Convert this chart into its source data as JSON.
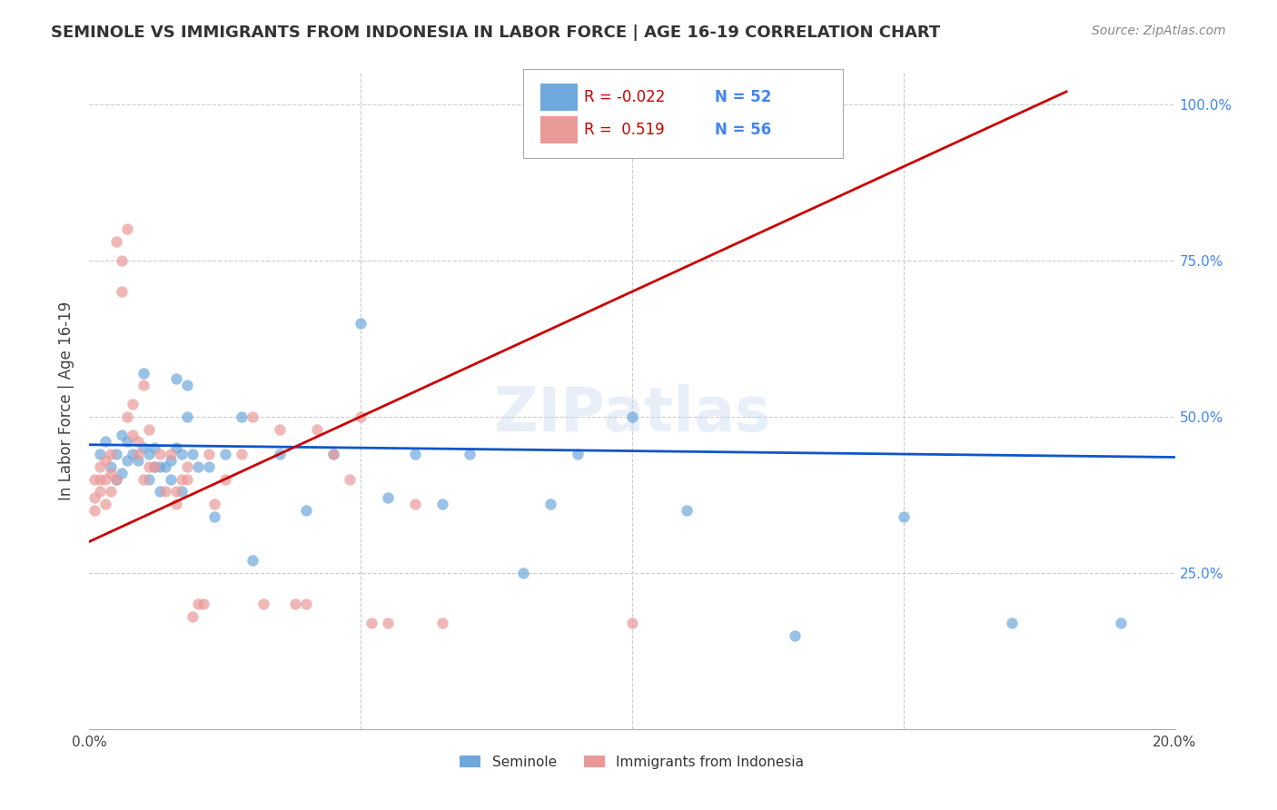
{
  "title": "SEMINOLE VS IMMIGRANTS FROM INDONESIA IN LABOR FORCE | AGE 16-19 CORRELATION CHART",
  "source": "Source: ZipAtlas.com",
  "xlabel": "",
  "ylabel": "In Labor Force | Age 16-19",
  "xlim": [
    0.0,
    0.2
  ],
  "ylim": [
    0.0,
    1.05
  ],
  "xticks": [
    0.0,
    0.05,
    0.1,
    0.15,
    0.2
  ],
  "xticklabels": [
    "0.0%",
    "",
    "",
    "",
    "20.0%"
  ],
  "yticks_right": [
    0.0,
    0.25,
    0.5,
    0.75,
    1.0
  ],
  "yticklabels_right": [
    "",
    "25.0%",
    "50.0%",
    "75.0%",
    "100.0%"
  ],
  "legend_r_blue": "-0.022",
  "legend_n_blue": "52",
  "legend_r_pink": "0.519",
  "legend_n_pink": "56",
  "blue_color": "#6fa8dc",
  "pink_color": "#ea9999",
  "blue_line_color": "#1155cc",
  "pink_line_color": "#cc0000",
  "watermark": "ZIPatlas",
  "blue_scatter_x": [
    0.002,
    0.003,
    0.004,
    0.005,
    0.005,
    0.006,
    0.006,
    0.007,
    0.007,
    0.008,
    0.009,
    0.01,
    0.01,
    0.011,
    0.011,
    0.012,
    0.012,
    0.013,
    0.013,
    0.014,
    0.015,
    0.015,
    0.016,
    0.016,
    0.017,
    0.017,
    0.018,
    0.018,
    0.019,
    0.02,
    0.022,
    0.023,
    0.025,
    0.028,
    0.03,
    0.035,
    0.04,
    0.045,
    0.05,
    0.055,
    0.06,
    0.065,
    0.07,
    0.08,
    0.085,
    0.09,
    0.1,
    0.11,
    0.13,
    0.15,
    0.17,
    0.19
  ],
  "blue_scatter_y": [
    0.44,
    0.46,
    0.42,
    0.44,
    0.4,
    0.47,
    0.41,
    0.43,
    0.46,
    0.44,
    0.43,
    0.45,
    0.57,
    0.44,
    0.4,
    0.42,
    0.45,
    0.42,
    0.38,
    0.42,
    0.4,
    0.43,
    0.45,
    0.56,
    0.44,
    0.38,
    0.55,
    0.5,
    0.44,
    0.42,
    0.42,
    0.34,
    0.44,
    0.5,
    0.27,
    0.44,
    0.35,
    0.44,
    0.65,
    0.37,
    0.44,
    0.36,
    0.44,
    0.25,
    0.36,
    0.44,
    0.5,
    0.35,
    0.15,
    0.34,
    0.17,
    0.17
  ],
  "pink_scatter_x": [
    0.001,
    0.001,
    0.001,
    0.002,
    0.002,
    0.002,
    0.003,
    0.003,
    0.003,
    0.004,
    0.004,
    0.004,
    0.005,
    0.005,
    0.006,
    0.006,
    0.007,
    0.007,
    0.008,
    0.008,
    0.009,
    0.009,
    0.01,
    0.01,
    0.011,
    0.011,
    0.012,
    0.013,
    0.014,
    0.015,
    0.016,
    0.016,
    0.017,
    0.018,
    0.018,
    0.019,
    0.02,
    0.021,
    0.022,
    0.023,
    0.025,
    0.028,
    0.03,
    0.032,
    0.035,
    0.038,
    0.04,
    0.042,
    0.045,
    0.048,
    0.05,
    0.052,
    0.055,
    0.06,
    0.065,
    0.1
  ],
  "pink_scatter_y": [
    0.4,
    0.37,
    0.35,
    0.42,
    0.4,
    0.38,
    0.43,
    0.4,
    0.36,
    0.44,
    0.38,
    0.41,
    0.4,
    0.78,
    0.7,
    0.75,
    0.8,
    0.5,
    0.52,
    0.47,
    0.44,
    0.46,
    0.55,
    0.4,
    0.48,
    0.42,
    0.42,
    0.44,
    0.38,
    0.44,
    0.38,
    0.36,
    0.4,
    0.42,
    0.4,
    0.18,
    0.2,
    0.2,
    0.44,
    0.36,
    0.4,
    0.44,
    0.5,
    0.2,
    0.48,
    0.2,
    0.2,
    0.48,
    0.44,
    0.4,
    0.5,
    0.17,
    0.17,
    0.36,
    0.17,
    0.17
  ],
  "blue_trendline_x": [
    0.0,
    0.2
  ],
  "blue_trendline_y": [
    0.455,
    0.435
  ],
  "pink_trendline_x": [
    0.0,
    0.18
  ],
  "pink_trendline_y": [
    0.3,
    1.02
  ]
}
